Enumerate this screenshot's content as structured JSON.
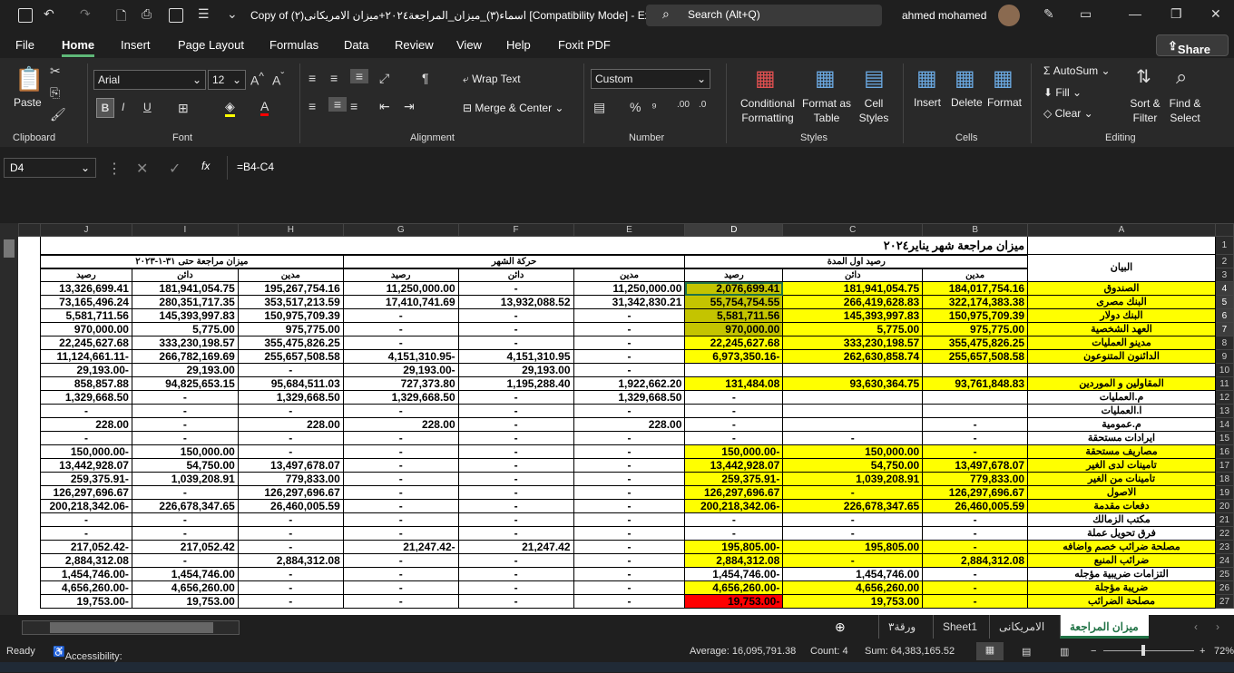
{
  "titlebar": {
    "title": "Copy of (٢)اسماء(٣)_ميزان_المراجعة٢٠٢٤+ميزان الامريكانى  [Compatibility Mode]  -  Excel",
    "search": "Search (Alt+Q)",
    "user": "ahmed mohamed"
  },
  "menu": [
    "File",
    "Home",
    "Insert",
    "Page Layout",
    "Formulas",
    "Data",
    "Review",
    "View",
    "Help",
    "Foxit PDF"
  ],
  "share": "Share",
  "ribbon": {
    "clipboard": {
      "paste": "Paste",
      "group": "Clipboard"
    },
    "font": {
      "name": "Arial",
      "size": "12",
      "group": "Font",
      "bold": "B",
      "italic": "I",
      "underline": "U"
    },
    "alignment": {
      "wrap": "Wrap Text",
      "merge": "Merge & Center",
      "group": "Alignment"
    },
    "number": {
      "format": "Custom",
      "group": "Number"
    },
    "styles": {
      "conditional": "Conditional Formatting",
      "format_table": "Format as Table",
      "cell_styles": "Cell Styles",
      "group": "Styles"
    },
    "cells": {
      "insert": "Insert",
      "delete": "Delete",
      "format": "Format",
      "group": "Cells"
    },
    "editing": {
      "autosum": "AutoSum",
      "fill": "Fill",
      "clear": "Clear",
      "sort": "Sort & Filter",
      "find": "Find & Select",
      "group": "Editing"
    }
  },
  "formula_bar": {
    "name_box": "D4",
    "formula": "=B4-C4",
    "fx": "fx"
  },
  "sheet": {
    "columns": [
      "J",
      "I",
      "H",
      "G",
      "F",
      "E",
      "D",
      "C",
      "B",
      "A"
    ],
    "title": "ميزان مراجعة شهر يناير٢٠٢٤",
    "label_header": "البيان",
    "groups": [
      "رصيد اول المدة",
      "حركة الشهر",
      "ميزان مراجعة حتى ٣١-١-٢٠٢٣"
    ],
    "subheaders": [
      "مدين",
      "دائن",
      "رصيد"
    ],
    "rows": [
      [
        "الصندوق",
        "184,017,754.16",
        "181,941,054.75",
        "2,076,699.41",
        "11,250,000.00",
        "-",
        "11,250,000.00",
        "195,267,754.16",
        "181,941,054.75",
        "13,326,699.41"
      ],
      [
        "البنك مصرى",
        "322,174,383.38",
        "266,419,628.83",
        "55,754,754.55",
        "31,342,830.21",
        "13,932,088.52",
        "17,410,741.69",
        "353,517,213.59",
        "280,351,717.35",
        "73,165,496.24"
      ],
      [
        "البنك دولار",
        "150,975,709.39",
        "145,393,997.83",
        "5,581,711.56",
        "-",
        "-",
        "-",
        "150,975,709.39",
        "145,393,997.83",
        "5,581,711.56"
      ],
      [
        "العهد الشخصية",
        "975,775.00",
        "5,775.00",
        "970,000.00",
        "-",
        "-",
        "-",
        "975,775.00",
        "5,775.00",
        "970,000.00"
      ],
      [
        "مدينو العمليات",
        "355,475,826.25",
        "333,230,198.57",
        "22,245,627.68",
        "-",
        "-",
        "-",
        "355,475,826.25",
        "333,230,198.57",
        "22,245,627.68"
      ],
      [
        "الدائنون المتنوعون",
        "255,657,508.58",
        "262,630,858.74",
        "6,973,350.16-",
        "-",
        "4,151,310.95",
        "4,151,310.95-",
        "255,657,508.58",
        "266,782,169.69",
        "11,124,661.11-"
      ],
      [
        "",
        "",
        "",
        "",
        "-",
        "29,193.00",
        "29,193.00-",
        "-",
        "29,193.00",
        "29,193.00-"
      ],
      [
        "المقاولين و الموردين",
        "93,761,848.83",
        "93,630,364.75",
        "131,484.08",
        "1,922,662.20",
        "1,195,288.40",
        "727,373.80",
        "95,684,511.03",
        "94,825,653.15",
        "858,857.88"
      ],
      [
        "م.العمليات",
        "",
        "",
        "-",
        "1,329,668.50",
        "-",
        "1,329,668.50",
        "1,329,668.50",
        "-",
        "1,329,668.50"
      ],
      [
        "ا.العمليات",
        "",
        "",
        "-",
        "-",
        "-",
        "-",
        "-",
        "-",
        "-"
      ],
      [
        "م.عمومية",
        "-",
        "",
        "-",
        "228.00",
        "-",
        "228.00",
        "228.00",
        "-",
        "228.00"
      ],
      [
        "ايرادات مستحقة",
        "-",
        "-",
        "-",
        "-",
        "-",
        "-",
        "-",
        "-",
        "-"
      ],
      [
        "مصاريف مستحقة",
        "-",
        "150,000.00",
        "150,000.00-",
        "-",
        "-",
        "-",
        "-",
        "150,000.00",
        "150,000.00-"
      ],
      [
        "تامينات لدى الغير",
        "13,497,678.07",
        "54,750.00",
        "13,442,928.07",
        "-",
        "-",
        "-",
        "13,497,678.07",
        "54,750.00",
        "13,442,928.07"
      ],
      [
        "تامينات من الغير",
        "779,833.00",
        "1,039,208.91",
        "259,375.91-",
        "-",
        "-",
        "-",
        "779,833.00",
        "1,039,208.91",
        "259,375.91-"
      ],
      [
        "الاصول",
        "126,297,696.67",
        "-",
        "126,297,696.67",
        "-",
        "-",
        "-",
        "126,297,696.67",
        "-",
        "126,297,696.67"
      ],
      [
        "دفعات مقدمة",
        "26,460,005.59",
        "226,678,347.65",
        "200,218,342.06-",
        "-",
        "-",
        "-",
        "26,460,005.59",
        "226,678,347.65",
        "200,218,342.06-"
      ],
      [
        "مكتب الزمالك",
        "-",
        "-",
        "-",
        "-",
        "-",
        "-",
        "-",
        "-",
        "-"
      ],
      [
        "فرق تحويل عملة",
        "-",
        "-",
        "-",
        "-",
        "-",
        "-",
        "-",
        "-",
        "-"
      ],
      [
        "مصلحة ضرائب خصم واضافه",
        "-",
        "195,805.00",
        "195,805.00-",
        "-",
        "21,247.42",
        "21,247.42-",
        "-",
        "217,052.42",
        "217,052.42-"
      ],
      [
        "ضرائب المنبع",
        "2,884,312.08",
        "-",
        "2,884,312.08",
        "-",
        "-",
        "-",
        "2,884,312.08",
        "-",
        "2,884,312.08"
      ],
      [
        "التزامات ضريبية مؤجله",
        "-",
        "1,454,746.00",
        "1,454,746.00-",
        "-",
        "-",
        "-",
        "-",
        "1,454,746.00",
        "1,454,746.00-"
      ],
      [
        "ضريبة مؤجلة",
        "-",
        "4,656,260.00",
        "4,656,260.00-",
        "-",
        "-",
        "-",
        "-",
        "4,656,260.00",
        "4,656,260.00-"
      ],
      [
        "مصلحة الضرائب",
        "-",
        "19,753.00",
        "19,753.00-",
        "-",
        "-",
        "-",
        "-",
        "19,753.00",
        "19,753.00-"
      ]
    ],
    "highlight": {
      "yellow": "#ffff00",
      "selected": "#c4c400",
      "error": "#ff0000"
    }
  },
  "sheet_tabs": [
    "ميزان المراجعة",
    "الامريكانى",
    "Sheet1",
    "ورقة٣"
  ],
  "status": {
    "ready": "Ready",
    "accessibility": "Accessibility: Unavailable",
    "average": "Average:  16,095,791.38",
    "count": "Count: 4",
    "sum": "Sum:  64,383,165.52",
    "zoom": "72%"
  }
}
